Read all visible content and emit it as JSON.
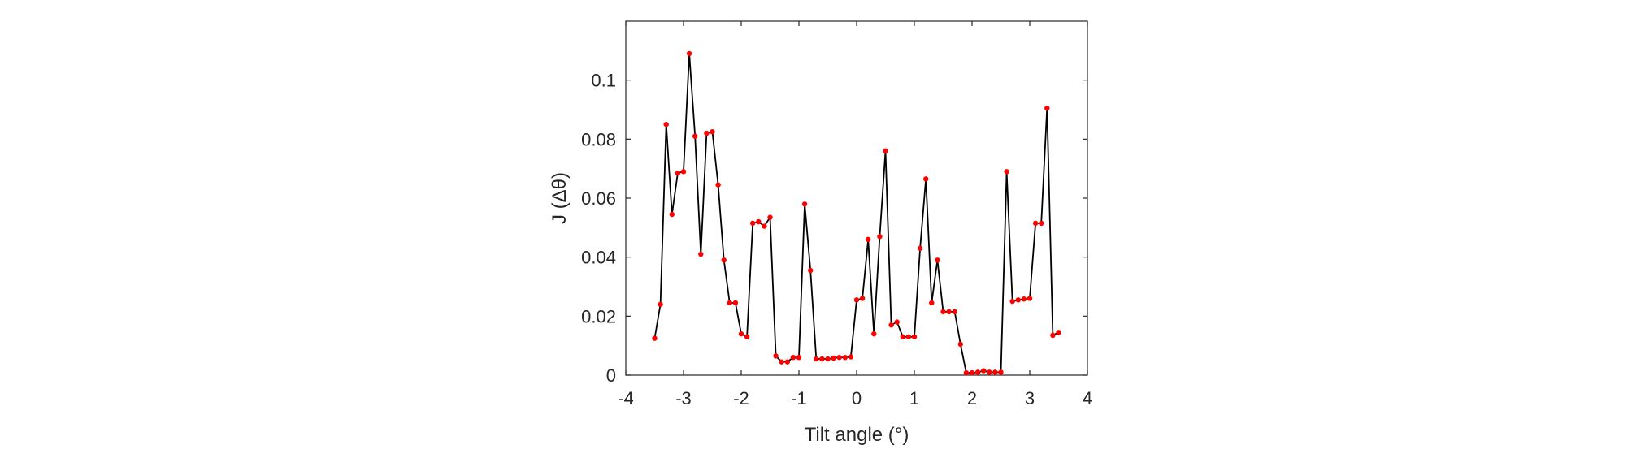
{
  "chart_data": {
    "type": "line",
    "title": "",
    "xlabel": "Tilt angle (°)",
    "ylabel": "J (Δθ)",
    "xlim": [
      -4,
      4
    ],
    "ylim": [
      0,
      0.12
    ],
    "xticks": [
      -4,
      -3,
      -2,
      -1,
      0,
      1,
      2,
      3,
      4
    ],
    "xtick_labels": [
      "-4",
      "-3",
      "-2",
      "-1",
      "0",
      "1",
      "2",
      "3",
      "4"
    ],
    "yticks": [
      0,
      0.02,
      0.04,
      0.06,
      0.08,
      0.1
    ],
    "ytick_labels": [
      "0",
      "0.02",
      "0.04",
      "0.06",
      "0.08",
      "0.1"
    ],
    "grid": false,
    "legend": "none",
    "line_color": "#000000",
    "marker_color": "#ff0000",
    "series": [
      {
        "x": [
          -3.5,
          -3.4,
          -3.3,
          -3.2,
          -3.1,
          -3.0,
          -2.9,
          -2.8,
          -2.7,
          -2.6,
          -2.5,
          -2.4,
          -2.3,
          -2.2,
          -2.1,
          -2.0,
          -1.9,
          -1.8,
          -1.7,
          -1.6,
          -1.5,
          -1.4,
          -1.3,
          -1.2,
          -1.1,
          -1.0,
          -0.9,
          -0.8,
          -0.7,
          -0.6,
          -0.5,
          -0.4,
          -0.3,
          -0.2,
          -0.1,
          0.0,
          0.1,
          0.2,
          0.3,
          0.4,
          0.5,
          0.6,
          0.7,
          0.8,
          0.9,
          1.0,
          1.1,
          1.2,
          1.3,
          1.4,
          1.5,
          1.6,
          1.7,
          1.8,
          1.9,
          2.0,
          2.1,
          2.2,
          2.3,
          2.4,
          2.5,
          2.6,
          2.7,
          2.8,
          2.9,
          3.0,
          3.1,
          3.2,
          3.3,
          3.4,
          3.5
        ],
        "y": [
          0.0125,
          0.024,
          0.085,
          0.0545,
          0.0685,
          0.069,
          0.109,
          0.081,
          0.041,
          0.082,
          0.0825,
          0.0645,
          0.039,
          0.0245,
          0.0245,
          0.014,
          0.013,
          0.0515,
          0.052,
          0.0505,
          0.0535,
          0.0065,
          0.0045,
          0.0045,
          0.006,
          0.006,
          0.058,
          0.0355,
          0.0055,
          0.0055,
          0.0055,
          0.0058,
          0.006,
          0.006,
          0.0062,
          0.0255,
          0.026,
          0.046,
          0.014,
          0.047,
          0.076,
          0.017,
          0.018,
          0.013,
          0.013,
          0.013,
          0.043,
          0.0665,
          0.0245,
          0.039,
          0.0215,
          0.0215,
          0.0215,
          0.0105,
          0.0008,
          0.0008,
          0.001,
          0.0015,
          0.001,
          0.001,
          0.001,
          0.069,
          0.025,
          0.0255,
          0.0258,
          0.026,
          0.0515,
          0.0515,
          0.0905,
          0.0135,
          0.0145
        ]
      }
    ]
  }
}
